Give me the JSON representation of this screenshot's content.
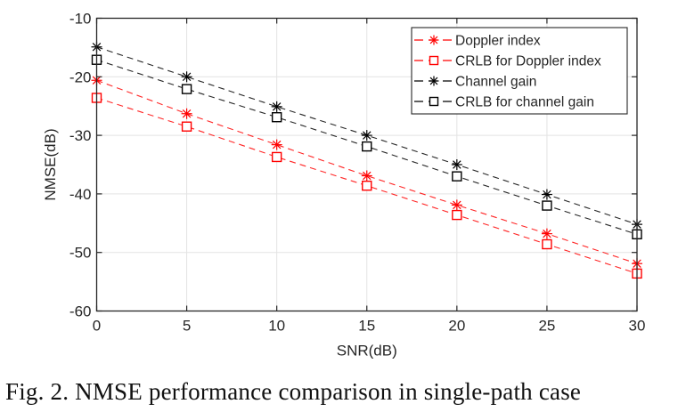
{
  "chart_data": {
    "type": "line",
    "title": "",
    "xlabel": "SNR(dB)",
    "ylabel": "NMSE(dB)",
    "xlim": [
      0,
      30
    ],
    "ylim": [
      -60,
      -10
    ],
    "xticks": [
      0,
      5,
      10,
      15,
      20,
      25,
      30
    ],
    "yticks": [
      -60,
      -50,
      -40,
      -30,
      -20,
      -10
    ],
    "xtick_labels": [
      "0",
      "5",
      "10",
      "15",
      "20",
      "25",
      "30"
    ],
    "ytick_labels": [
      "-60",
      "-50",
      "-40",
      "-30",
      "-20",
      "-10"
    ],
    "grid": true,
    "legend_position": "top-right",
    "x": [
      0,
      5,
      10,
      15,
      20,
      25,
      30
    ],
    "series": [
      {
        "name": "Doppler index",
        "color": "#ff0000",
        "marker": "star",
        "linestyle": "dashed",
        "values": [
          -20.6,
          -26.3,
          -31.6,
          -36.9,
          -41.9,
          -46.8,
          -51.9
        ]
      },
      {
        "name": "CRLB for Doppler index",
        "color": "#ff0000",
        "marker": "square",
        "linestyle": "dashed",
        "values": [
          -23.6,
          -28.5,
          -33.7,
          -38.6,
          -43.6,
          -48.6,
          -53.6
        ]
      },
      {
        "name": "Channel gain",
        "color": "#000000",
        "marker": "star",
        "linestyle": "dashed",
        "values": [
          -14.9,
          -20.0,
          -25.1,
          -30.0,
          -35.0,
          -40.1,
          -45.2
        ]
      },
      {
        "name": "CRLB for channel gain",
        "color": "#000000",
        "marker": "square",
        "linestyle": "dashed",
        "values": [
          -17.1,
          -22.1,
          -26.9,
          -31.9,
          -37.0,
          -42.0,
          -46.9
        ]
      }
    ]
  },
  "caption": "Fig. 2. NMSE performance comparison in single-path case"
}
